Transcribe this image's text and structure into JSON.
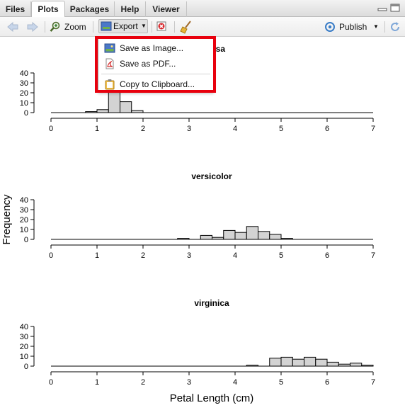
{
  "tabs": [
    {
      "label": "Files",
      "active": false
    },
    {
      "label": "Plots",
      "active": true
    },
    {
      "label": "Packages",
      "active": false
    },
    {
      "label": "Help",
      "active": false
    },
    {
      "label": "Viewer",
      "active": false
    }
  ],
  "toolbar": {
    "zoom_label": "Zoom",
    "export_label": "Export",
    "publish_label": "Publish"
  },
  "export_menu": {
    "items": [
      {
        "label": "Save as Image...",
        "icon": "image-icon"
      },
      {
        "label": "Save as PDF...",
        "icon": "pdf-icon"
      },
      {
        "label": "Copy to Clipboard...",
        "icon": "clipboard-icon"
      }
    ],
    "highlight_color": "#e8000d"
  },
  "colors": {
    "bar_fill": "#d3d3d3",
    "bar_stroke": "#000000"
  },
  "chart_data": {
    "type": "bar",
    "ylabel": "Frequency",
    "xlabel": "Petal Length (cm)",
    "xlim": [
      0,
      7
    ],
    "ylim": [
      0,
      40
    ],
    "bin_width": 0.25,
    "x_ticks": [
      "0",
      "1",
      "2",
      "3",
      "4",
      "5",
      "6",
      "7"
    ],
    "y_ticks": [
      "0",
      "10",
      "20",
      "30",
      "40"
    ],
    "panels": [
      {
        "title": "setosa",
        "bins": [
          {
            "start": 0.75,
            "count": 1
          },
          {
            "start": 1.0,
            "count": 3
          },
          {
            "start": 1.25,
            "count": 35
          },
          {
            "start": 1.5,
            "count": 11
          },
          {
            "start": 1.75,
            "count": 2
          }
        ]
      },
      {
        "title": "versicolor",
        "bins": [
          {
            "start": 2.75,
            "count": 1
          },
          {
            "start": 3.25,
            "count": 4
          },
          {
            "start": 3.5,
            "count": 2
          },
          {
            "start": 3.75,
            "count": 9
          },
          {
            "start": 4.0,
            "count": 7
          },
          {
            "start": 4.25,
            "count": 13
          },
          {
            "start": 4.5,
            "count": 8
          },
          {
            "start": 4.75,
            "count": 5
          },
          {
            "start": 5.0,
            "count": 1
          }
        ]
      },
      {
        "title": "virginica",
        "bins": [
          {
            "start": 4.25,
            "count": 1
          },
          {
            "start": 4.75,
            "count": 8
          },
          {
            "start": 5.0,
            "count": 9
          },
          {
            "start": 5.25,
            "count": 7
          },
          {
            "start": 5.5,
            "count": 9
          },
          {
            "start": 5.75,
            "count": 7
          },
          {
            "start": 6.0,
            "count": 4
          },
          {
            "start": 6.25,
            "count": 2
          },
          {
            "start": 6.5,
            "count": 3
          },
          {
            "start": 6.75,
            "count": 1
          }
        ]
      }
    ]
  }
}
